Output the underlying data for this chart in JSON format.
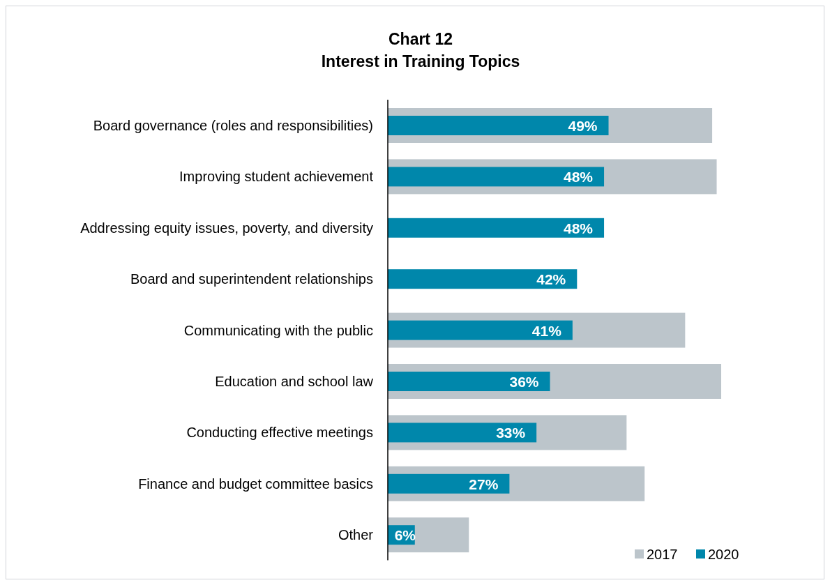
{
  "chart_data": {
    "type": "bar",
    "orientation": "horizontal",
    "title": "Chart 12\nInterest in Training Topics",
    "categories": [
      "Board governance (roles and responsibilities)",
      "Improving student achievement",
      "Addressing equity issues, poverty, and diversity",
      "Board and superintendent relationships",
      "Communicating with the public",
      "Education and school law",
      "Conducting effective meetings",
      "Finance and budget committee basics",
      "Other"
    ],
    "legend": "bottom right",
    "series": [
      {
        "name": "2017",
        "color": "#bcc5cb",
        "values": [
          72,
          73,
          null,
          null,
          66,
          74,
          53,
          57,
          18
        ]
      },
      {
        "name": "2020",
        "color": "#0087ab",
        "values": [
          49,
          48,
          48,
          42,
          41,
          36,
          33,
          27,
          6
        ],
        "value_labels": [
          "49%",
          "48%",
          "48%",
          "42%",
          "41%",
          "36%",
          "33%",
          "27%",
          "6%"
        ]
      }
    ]
  }
}
